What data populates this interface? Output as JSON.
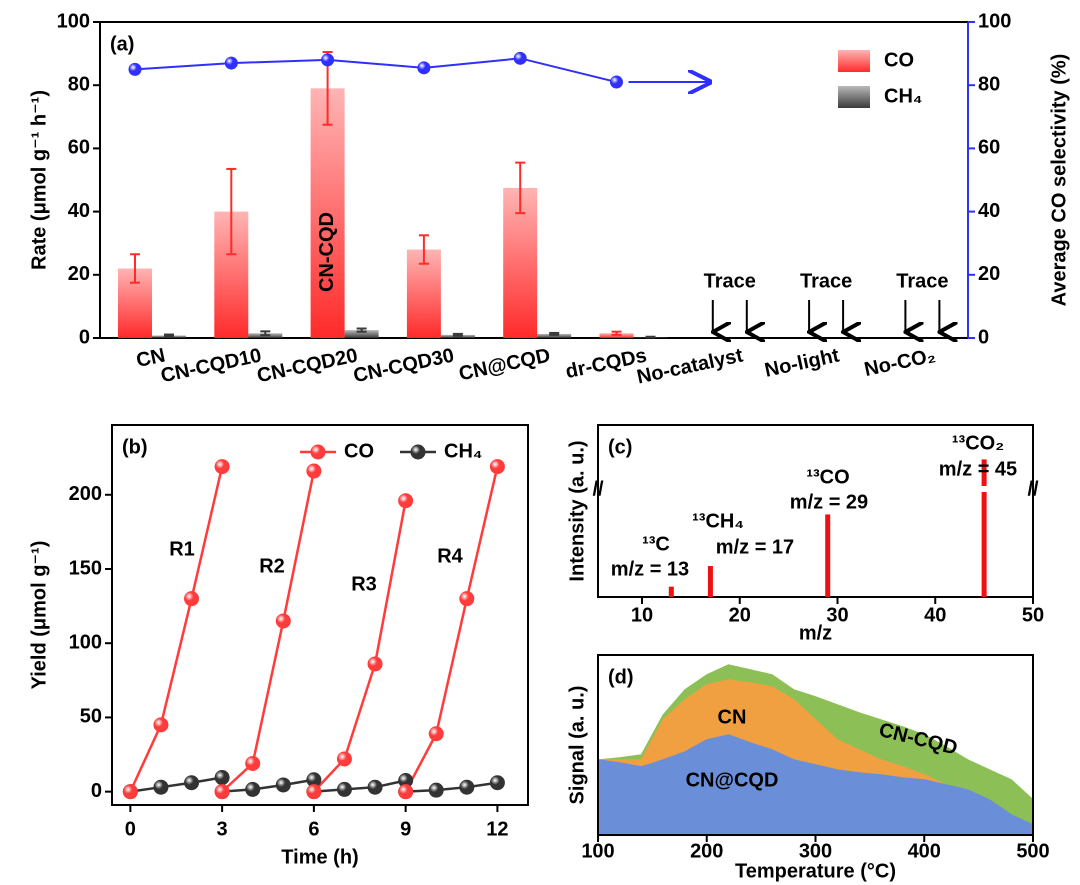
{
  "chart_data": [
    {
      "type": "bar",
      "panel_label": "(a)",
      "ylabel": "Rate (μmol g⁻¹ h⁻¹)",
      "y2label": "Average CO selectivity (%)",
      "categories": [
        "CN",
        "CN-CQD10",
        "CN-CQD20",
        "CN-CQD30",
        "CN@CQD",
        "dr-CQDs",
        "No-catalyst",
        "No-light",
        "No-CO₂"
      ],
      "series": [
        {
          "name": "CO",
          "color": "#ff2a2a",
          "values": [
            22,
            40,
            79,
            28,
            47.5,
            1.5,
            null,
            null,
            null
          ],
          "errors": [
            4.5,
            13.5,
            11.5,
            4.5,
            8,
            0.5,
            null,
            null,
            null
          ]
        },
        {
          "name": "CH₄",
          "color": "#3a3a3a",
          "values": [
            0.8,
            1.5,
            2.5,
            1,
            1.3,
            0.3,
            null,
            null,
            null
          ],
          "errors": [
            0.3,
            0.6,
            0.5,
            0.3,
            0.3,
            0.1,
            null,
            null,
            null
          ]
        },
        {
          "axis": "y2",
          "color": "#2f2fff",
          "values": [
            85,
            87,
            88,
            85.5,
            88.5,
            81,
            null,
            null,
            null
          ]
        }
      ],
      "annotations": [
        "CN-CQD",
        "Trace",
        "Trace",
        "Trace"
      ],
      "ylim": [
        0,
        100
      ],
      "yticks": [
        0,
        20,
        40,
        60,
        80,
        100
      ],
      "y2lim": [
        0,
        100
      ],
      "y2ticks": [
        0,
        20,
        40,
        60,
        80,
        100
      ],
      "legend": "upper right"
    },
    {
      "type": "line",
      "panel_label": "(b)",
      "xlabel": "Time (h)",
      "ylabel": "Yield (μmol g⁻¹)",
      "x": [
        0,
        1,
        2,
        3,
        null,
        3,
        4,
        5,
        6,
        null,
        6,
        7,
        8,
        9,
        null,
        9,
        10,
        11,
        12
      ],
      "series": [
        {
          "name": "CO",
          "color": "#ff3b3b",
          "values": [
            0,
            45,
            130,
            219,
            null,
            0,
            19,
            115,
            216,
            null,
            0,
            22,
            86,
            196,
            null,
            0,
            39,
            130,
            219
          ]
        },
        {
          "name": "CH₄",
          "color": "#333333",
          "values": [
            0,
            3,
            6,
            9.5,
            null,
            0,
            1.5,
            4.5,
            8,
            null,
            0,
            1.5,
            3,
            7.5,
            null,
            0,
            1,
            3,
            6
          ]
        }
      ],
      "annotations": [
        "R1",
        "R2",
        "R3",
        "R4"
      ],
      "xlim": [
        -0.6,
        13
      ],
      "xticks": [
        0,
        3,
        6,
        9,
        12
      ],
      "ylim": [
        -9,
        247
      ],
      "yticks": [
        0,
        50,
        100,
        150,
        200
      ],
      "legend": "upper right"
    },
    {
      "type": "bar",
      "panel_label": "(c)",
      "xlabel": "m/z",
      "ylabel": "Intensity (a. u.)",
      "x": [
        13,
        17,
        29,
        45
      ],
      "values": [
        0.06,
        0.18,
        0.48,
        0.8
      ],
      "color": "#ee1111",
      "annotations": [
        "¹³C",
        "m/z = 13",
        "¹³CH₄",
        "m/z = 17",
        "¹³CO",
        "m/z = 29",
        "¹³CO₂",
        "m/z = 45"
      ],
      "xlim": [
        5.5,
        50
      ],
      "xticks": [
        10,
        20,
        30,
        40,
        50
      ],
      "ylim": [
        0,
        1
      ]
    },
    {
      "type": "area",
      "panel_label": "(d)",
      "xlabel": "Temperature (°C)",
      "ylabel": "Signal (a. u.)",
      "x": [
        100,
        120,
        140,
        160,
        180,
        200,
        220,
        240,
        260,
        280,
        300,
        320,
        340,
        360,
        380,
        400,
        420,
        440,
        460,
        480,
        500
      ],
      "series": [
        {
          "name": "CN@CQD",
          "color": "#6a8fd8",
          "values": [
            75,
            72,
            68,
            75,
            83,
            95,
            100,
            92,
            85,
            75,
            70,
            65,
            62,
            60,
            57,
            55,
            50,
            45,
            35,
            20,
            10
          ]
        },
        {
          "name": "CN",
          "color": "#f0a040",
          "values": [
            75,
            75,
            75,
            115,
            135,
            150,
            155,
            152,
            148,
            135,
            115,
            95,
            85,
            75,
            68,
            60,
            50,
            40,
            28,
            15,
            5
          ]
        },
        {
          "name": "CN-CQD",
          "color": "#8cc056",
          "values": [
            75,
            77,
            80,
            120,
            145,
            160,
            170,
            165,
            160,
            145,
            138,
            130,
            122,
            115,
            108,
            100,
            88,
            75,
            65,
            55,
            35
          ]
        }
      ],
      "xlim": [
        100,
        500
      ],
      "xticks": [
        100,
        200,
        300,
        400,
        500
      ],
      "ylim": [
        0,
        180
      ]
    }
  ]
}
